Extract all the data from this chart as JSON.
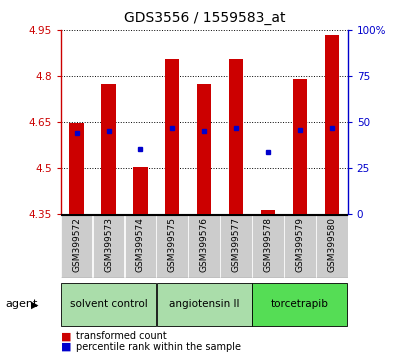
{
  "title": "GDS3556 / 1559583_at",
  "samples": [
    "GSM399572",
    "GSM399573",
    "GSM399574",
    "GSM399575",
    "GSM399576",
    "GSM399577",
    "GSM399578",
    "GSM399579",
    "GSM399580"
  ],
  "bar_tops": [
    4.648,
    4.775,
    4.505,
    4.855,
    4.775,
    4.855,
    4.363,
    4.79,
    4.935
  ],
  "bar_bottom": 4.35,
  "blue_dots": [
    4.613,
    4.622,
    4.562,
    4.632,
    4.62,
    4.63,
    4.553,
    4.625,
    4.63
  ],
  "ylim_left": [
    4.35,
    4.95
  ],
  "yticks_left": [
    4.35,
    4.5,
    4.65,
    4.8,
    4.95
  ],
  "ytick_labels_left": [
    "4.35",
    "4.5",
    "4.65",
    "4.8",
    "4.95"
  ],
  "yticks_right_vals": [
    4.35,
    4.5,
    4.65,
    4.8,
    4.95
  ],
  "ytick_labels_right": [
    "0",
    "25",
    "50",
    "75",
    "100%"
  ],
  "bar_color": "#cc0000",
  "dot_color": "#0000cc",
  "groups": [
    {
      "label": "solvent control",
      "samples": [
        0,
        1,
        2
      ],
      "color": "#aaddaa"
    },
    {
      "label": "angiotensin II",
      "samples": [
        3,
        4,
        5
      ],
      "color": "#aaddaa"
    },
    {
      "label": "torcetrapib",
      "samples": [
        6,
        7,
        8
      ],
      "color": "#55dd55"
    }
  ],
  "agent_label": "agent",
  "legend_items": [
    {
      "label": "transformed count",
      "color": "#cc0000"
    },
    {
      "label": "percentile rank within the sample",
      "color": "#0000cc"
    }
  ],
  "left_axis_color": "#cc0000",
  "right_axis_color": "#0000cc",
  "sample_box_color": "#cccccc",
  "title_fontsize": 10,
  "tick_fontsize": 7.5,
  "label_fontsize": 6.5,
  "group_fontsize": 7.5,
  "legend_fontsize": 7.0
}
